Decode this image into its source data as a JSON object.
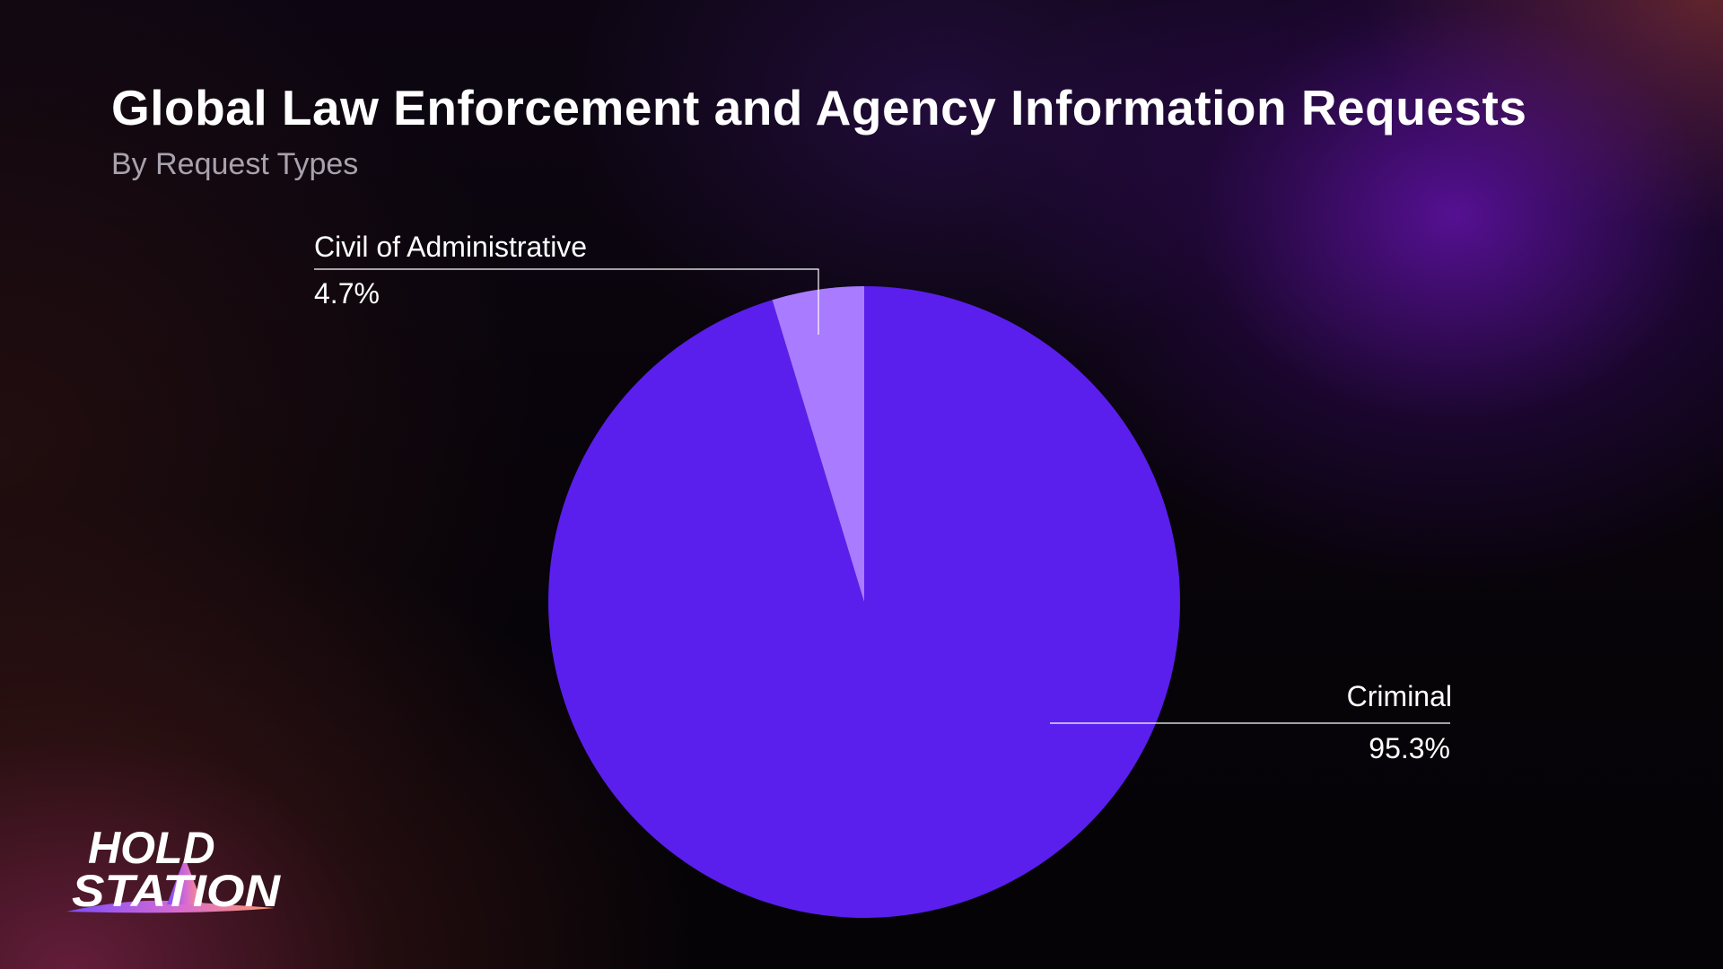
{
  "title": "Global Law Enforcement and Agency Information Requests",
  "subtitle": "By Request Types",
  "brand": {
    "line1": "HOLD",
    "line2": "STATION"
  },
  "colors": {
    "criminal": "#5a1fec",
    "civil": "#a97bff",
    "leader_line": "#ffffff"
  },
  "chart_data": {
    "type": "pie",
    "title": "Global Law Enforcement and Agency Information Requests",
    "subtitle": "By Request Types",
    "slices": [
      {
        "label": "Criminal",
        "value": 95.3,
        "display": "95.3%",
        "color": "#5a1fec"
      },
      {
        "label": "Civil of Administrative",
        "value": 4.7,
        "display": "4.7%",
        "color": "#a97bff"
      }
    ]
  }
}
